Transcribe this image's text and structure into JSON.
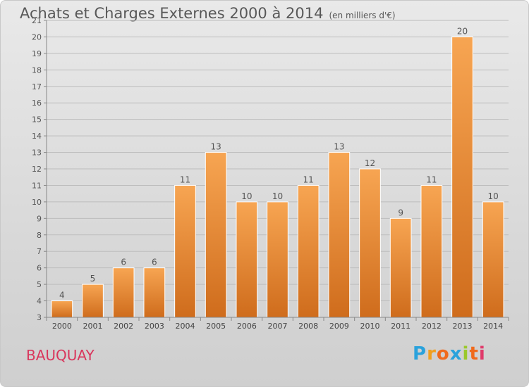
{
  "header": {
    "title": "Achats et Charges Externes 2000 à 2014",
    "subtitle": "(en milliers d'€)"
  },
  "commune": "BAUQUAY",
  "logo": {
    "letters": [
      "P",
      "r",
      "o",
      "x",
      "i",
      "t",
      "i"
    ],
    "colors": [
      "#2aa2dc",
      "#f0a020",
      "#f06a1c",
      "#2aa2dc",
      "#9ac82a",
      "#f06a1c",
      "#e03a6a"
    ]
  },
  "chart_data": {
    "type": "bar",
    "categories": [
      "2000",
      "2001",
      "2002",
      "2003",
      "2004",
      "2005",
      "2006",
      "2007",
      "2008",
      "2009",
      "2010",
      "2011",
      "2012",
      "2013",
      "2014"
    ],
    "values": [
      4,
      5,
      6,
      6,
      11,
      13,
      10,
      10,
      11,
      13,
      12,
      9,
      11,
      20,
      10
    ],
    "ylim": [
      3,
      21
    ],
    "yticks": [
      3,
      4,
      5,
      6,
      7,
      8,
      9,
      10,
      11,
      12,
      13,
      14,
      15,
      16,
      17,
      18,
      19,
      20,
      21
    ],
    "grid": true,
    "bar_color": "#f0903a",
    "title": "Achats et Charges Externes 2000 à 2014",
    "subtitle": "(en milliers d'€)"
  }
}
